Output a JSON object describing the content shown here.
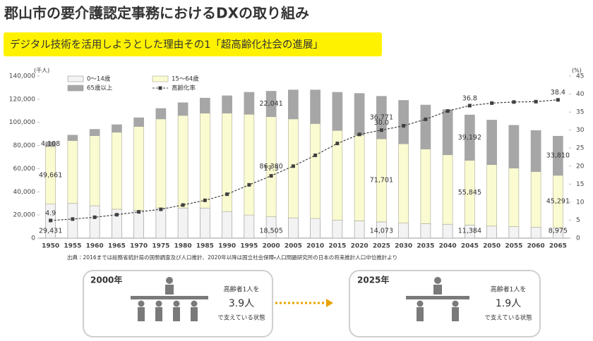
{
  "header": {
    "title": "郡山市の要介護認定事務におけるDXの取り組み",
    "banner": "デジタル技術を活用しようとした理由その1「超高齢化社会の進展」"
  },
  "chart_data": {
    "type": "bar",
    "stacked": true,
    "y_label": "(千人)",
    "y2_label": "(%)",
    "categories": [
      "1950",
      "1955",
      "1960",
      "1965",
      "1970",
      "1975",
      "1980",
      "1985",
      "1990",
      "1995",
      "2000",
      "2005",
      "2010",
      "2015",
      "2020",
      "2025",
      "2030",
      "2035",
      "2040",
      "2045",
      "2050",
      "2055",
      "2060",
      "2065"
    ],
    "series": [
      {
        "name": "0～14歳",
        "color": "#f3f3f3",
        "stroke": "#a0a0a0",
        "values": [
          29431,
          30000,
          28000,
          25000,
          24000,
          26000,
          26000,
          26000,
          23000,
          20000,
          18505,
          17500,
          17000,
          15500,
          15000,
          14073,
          13000,
          12500,
          12000,
          11384,
          10500,
          10000,
          9500,
          8975
        ],
        "value_labels": [
          "29,431",
          null,
          null,
          null,
          null,
          null,
          null,
          null,
          null,
          null,
          "18,505",
          null,
          null,
          null,
          null,
          "14,073",
          null,
          null,
          null,
          "11,384",
          null,
          null,
          null,
          "8,975"
        ]
      },
      {
        "name": "15～64歳",
        "color": "#fbfbd2",
        "stroke": "#b5b5a0",
        "values": [
          49661,
          54300,
          60500,
          66500,
          72500,
          77000,
          80000,
          82000,
          85000,
          87000,
          86380,
          85500,
          82000,
          77500,
          74000,
          71701,
          68500,
          64500,
          60000,
          55845,
          53000,
          50500,
          48000,
          45291
        ],
        "value_labels": [
          "49,661",
          null,
          null,
          null,
          null,
          null,
          null,
          null,
          null,
          null,
          "86,380",
          null,
          null,
          null,
          null,
          "71,701",
          null,
          null,
          null,
          "55,845",
          null,
          null,
          null,
          "45,291"
        ]
      },
      {
        "name": "65歳以上",
        "color": "#a6a6a6",
        "stroke": "#a6a6a6",
        "values": [
          4108,
          4700,
          5500,
          6500,
          7500,
          9000,
          11000,
          13000,
          15000,
          19000,
          22041,
          25000,
          29000,
          33000,
          36000,
          36771,
          37500,
          38000,
          39000,
          39192,
          38500,
          37000,
          35500,
          33810
        ],
        "value_labels": [
          "4,108",
          null,
          null,
          null,
          null,
          null,
          null,
          null,
          null,
          null,
          "22,041",
          null,
          null,
          null,
          null,
          "36,771",
          null,
          null,
          null,
          "39,192",
          null,
          null,
          null,
          "33,810"
        ]
      },
      {
        "name": "高齢化率",
        "type": "line",
        "axis": "y2",
        "color": "#404040",
        "values": [
          4.9,
          5.3,
          5.8,
          6.5,
          7.3,
          8.0,
          9.2,
          10.5,
          12.2,
          14.8,
          17.3,
          20.0,
          23.0,
          26.3,
          28.8,
          30.0,
          31.2,
          33.0,
          35.3,
          36.8,
          37.5,
          37.8,
          37.9,
          38.4
        ],
        "value_labels": [
          "4.9",
          null,
          null,
          null,
          null,
          null,
          null,
          null,
          null,
          null,
          "17.3",
          null,
          null,
          null,
          null,
          "30.0",
          null,
          null,
          null,
          "36.8",
          null,
          null,
          null,
          "38.4"
        ]
      }
    ],
    "ylim": [
      0,
      140000
    ],
    "yticks": [
      0,
      {
        "value": 20000,
        "label": "20,000"
      },
      {
        "value": 40000,
        "label": "40,000"
      },
      {
        "value": 60000,
        "label": "60,000"
      },
      {
        "value": 80000,
        "label": "80,000"
      },
      {
        "value": 100000,
        "label": "100,000"
      },
      {
        "value": 120000,
        "label": "120,000"
      },
      {
        "value": 140000,
        "label": "140,000"
      }
    ],
    "y2lim": [
      0,
      45
    ],
    "y2ticks": [
      0,
      5,
      10,
      15,
      20,
      25,
      30,
      35,
      40,
      45
    ],
    "legend": "top-left",
    "grid": false
  },
  "source": "出典：2016までは総務省統計局の国勢調査及び人口推計、2020年以降は国立社会保障・人口問題研究所の日本の将来推計人口中位推計より",
  "comparison": [
    {
      "year": "2000年",
      "line1": "高齢者1人を",
      "value": "3.9人",
      "line2": "で支えている状態"
    },
    {
      "year": "2025年",
      "line1": "高齢者1人を",
      "value": "1.9人",
      "line2": "で支えている状態"
    }
  ]
}
